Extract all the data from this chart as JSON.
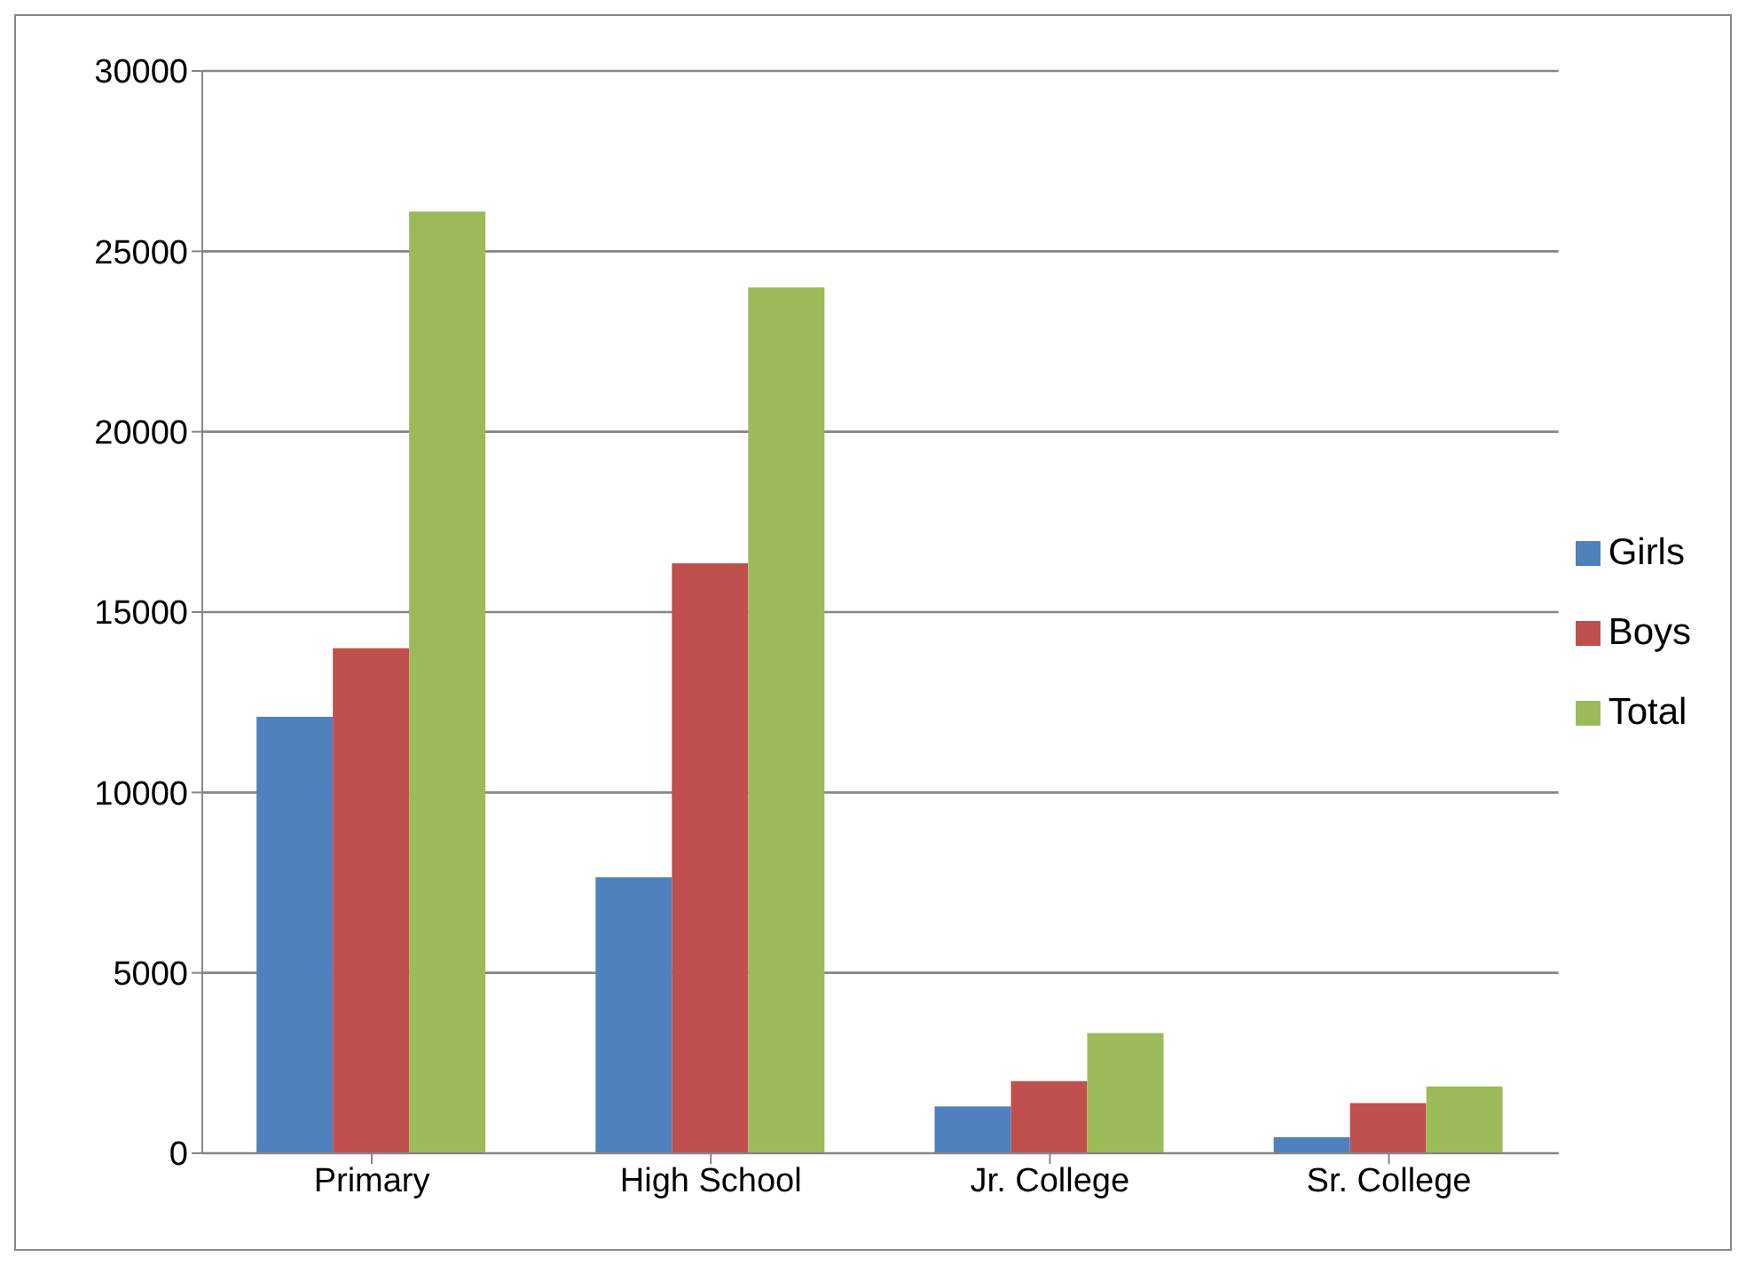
{
  "chart_data": {
    "type": "bar",
    "categories": [
      "Primary",
      "High School",
      "Jr. College",
      "Sr. College"
    ],
    "series": [
      {
        "name": "Girls",
        "color": "#4f81bd",
        "values": [
          12100,
          7650,
          1300,
          440
        ]
      },
      {
        "name": "Boys",
        "color": "#c0504d",
        "values": [
          14000,
          16350,
          2000,
          1390
        ]
      },
      {
        "name": "Total",
        "color": "#9bbb59",
        "values": [
          26100,
          24000,
          3330,
          1850
        ]
      }
    ],
    "ylim": [
      0,
      30000
    ],
    "yticks": [
      0,
      5000,
      10000,
      15000,
      20000,
      25000,
      30000
    ],
    "grid": "y",
    "legend": "right"
  }
}
